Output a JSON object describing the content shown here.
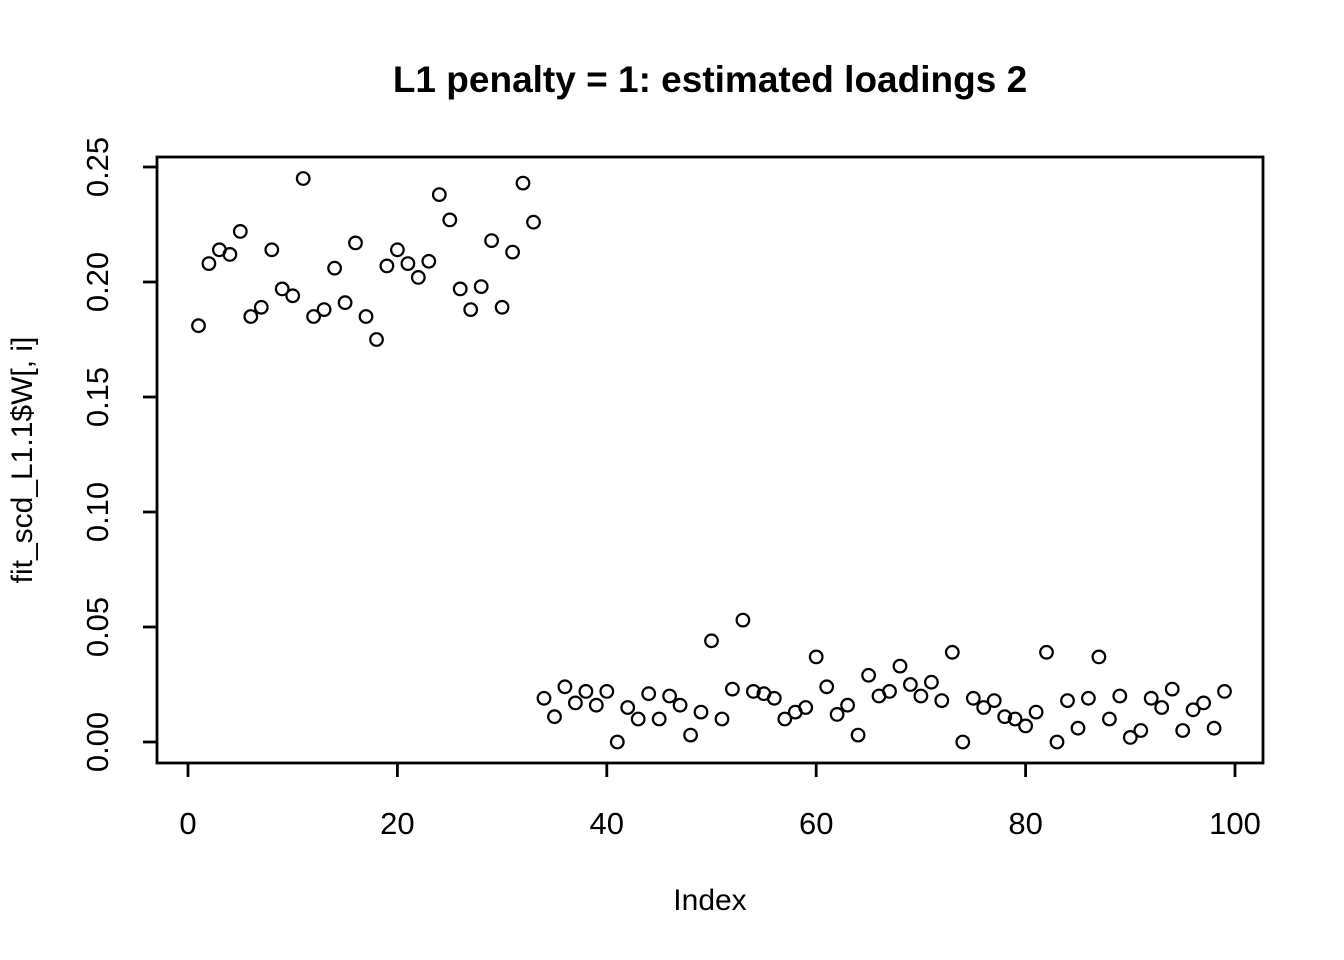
{
  "chart_data": {
    "type": "scatter",
    "title": "L1 penalty = 1: estimated loadings 2",
    "xlabel": "Index",
    "ylabel": "fit_scd_L1.1$W[, i]",
    "xlim": [
      0,
      100
    ],
    "ylim": [
      0.0,
      0.25
    ],
    "x_ticks": [
      "0",
      "20",
      "40",
      "60",
      "80",
      "100"
    ],
    "x_tick_values": [
      0,
      20,
      40,
      60,
      80,
      100
    ],
    "y_ticks": [
      "0.00",
      "0.05",
      "0.10",
      "0.15",
      "0.20",
      "0.25"
    ],
    "y_tick_values": [
      0,
      0.05,
      0.1,
      0.15,
      0.2,
      0.25
    ],
    "grid": false,
    "legend_position": "none",
    "marker": "open-circle",
    "colors": {
      "points": "#000000",
      "axis": "#000000",
      "title": "#000000",
      "background": "#ffffff"
    },
    "series": [
      {
        "name": "fit_scd_L1.1$W[, i]",
        "points": [
          [
            1,
            0.181
          ],
          [
            2,
            0.208
          ],
          [
            3,
            0.214
          ],
          [
            4,
            0.212
          ],
          [
            5,
            0.222
          ],
          [
            6,
            0.185
          ],
          [
            7,
            0.189
          ],
          [
            8,
            0.214
          ],
          [
            9,
            0.197
          ],
          [
            10,
            0.194
          ],
          [
            11,
            0.245
          ],
          [
            12,
            0.185
          ],
          [
            13,
            0.188
          ],
          [
            14,
            0.206
          ],
          [
            15,
            0.191
          ],
          [
            16,
            0.217
          ],
          [
            17,
            0.185
          ],
          [
            18,
            0.175
          ],
          [
            19,
            0.207
          ],
          [
            20,
            0.214
          ],
          [
            21,
            0.208
          ],
          [
            22,
            0.202
          ],
          [
            23,
            0.209
          ],
          [
            24,
            0.238
          ],
          [
            25,
            0.227
          ],
          [
            26,
            0.197
          ],
          [
            27,
            0.188
          ],
          [
            28,
            0.198
          ],
          [
            29,
            0.218
          ],
          [
            30,
            0.189
          ],
          [
            31,
            0.213
          ],
          [
            32,
            0.243
          ],
          [
            33,
            0.226
          ],
          [
            34,
            0.019
          ],
          [
            35,
            0.011
          ],
          [
            36,
            0.024
          ],
          [
            37,
            0.017
          ],
          [
            38,
            0.022
          ],
          [
            39,
            0.016
          ],
          [
            40,
            0.022
          ],
          [
            41,
            0.0
          ],
          [
            42,
            0.015
          ],
          [
            43,
            0.01
          ],
          [
            44,
            0.021
          ],
          [
            45,
            0.01
          ],
          [
            46,
            0.02
          ],
          [
            47,
            0.016
          ],
          [
            48,
            0.003
          ],
          [
            49,
            0.013
          ],
          [
            50,
            0.044
          ],
          [
            51,
            0.01
          ],
          [
            52,
            0.023
          ],
          [
            53,
            0.053
          ],
          [
            54,
            0.022
          ],
          [
            55,
            0.021
          ],
          [
            56,
            0.019
          ],
          [
            57,
            0.01
          ],
          [
            58,
            0.013
          ],
          [
            59,
            0.015
          ],
          [
            60,
            0.037
          ],
          [
            61,
            0.024
          ],
          [
            62,
            0.012
          ],
          [
            63,
            0.016
          ],
          [
            64,
            0.003
          ],
          [
            65,
            0.029
          ],
          [
            66,
            0.02
          ],
          [
            67,
            0.022
          ],
          [
            68,
            0.033
          ],
          [
            69,
            0.025
          ],
          [
            70,
            0.02
          ],
          [
            71,
            0.026
          ],
          [
            72,
            0.018
          ],
          [
            73,
            0.039
          ],
          [
            74,
            0.0
          ],
          [
            75,
            0.019
          ],
          [
            76,
            0.015
          ],
          [
            77,
            0.018
          ],
          [
            78,
            0.011
          ],
          [
            79,
            0.01
          ],
          [
            80,
            0.007
          ],
          [
            81,
            0.013
          ],
          [
            82,
            0.039
          ],
          [
            83,
            0.0
          ],
          [
            84,
            0.018
          ],
          [
            85,
            0.006
          ],
          [
            86,
            0.019
          ],
          [
            87,
            0.037
          ],
          [
            88,
            0.01
          ],
          [
            89,
            0.02
          ],
          [
            90,
            0.002
          ],
          [
            91,
            0.005
          ],
          [
            92,
            0.019
          ],
          [
            93,
            0.015
          ],
          [
            94,
            0.023
          ],
          [
            95,
            0.005
          ],
          [
            96,
            0.014
          ],
          [
            97,
            0.017
          ],
          [
            98,
            0.006
          ],
          [
            99,
            0.022
          ]
        ]
      }
    ]
  }
}
